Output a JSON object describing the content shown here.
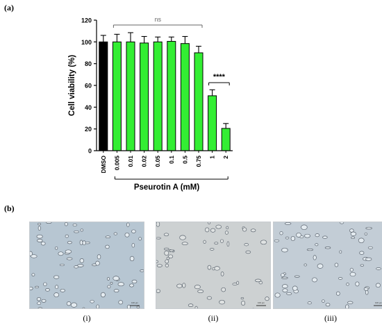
{
  "panel_a_label": "(a)",
  "panel_b_label": "(b)",
  "chart_data": {
    "type": "bar",
    "categories": [
      "DMSO",
      "0.005",
      "0.01",
      "0.02",
      "0.05",
      "0.1",
      "0.5",
      "0.75",
      "1",
      "2"
    ],
    "values": [
      100,
      100,
      100,
      99,
      100,
      100.5,
      98.5,
      90,
      50.5,
      20.5
    ],
    "errors": [
      6,
      7,
      8.5,
      6,
      4.5,
      4,
      6.5,
      6,
      5.5,
      4.5
    ],
    "bar_colors": [
      "#000000",
      "#33ee33",
      "#33ee33",
      "#33ee33",
      "#33ee33",
      "#33ee33",
      "#33ee33",
      "#33ee33",
      "#33ee33",
      "#33ee33"
    ],
    "ylabel": "Cell viability (%)",
    "xlabel": "Pseurotin A (mM)",
    "ylim": [
      0,
      120
    ],
    "yticks": [
      0,
      20,
      40,
      60,
      80,
      100,
      120
    ],
    "grid": false,
    "annotations": [
      {
        "text": "ns",
        "from_category": "0.005",
        "to_category": "0.75"
      },
      {
        "text": "****",
        "from_category": "1",
        "to_category": "2"
      }
    ]
  },
  "micrographs": {
    "captions": [
      "(i)",
      "(ii)",
      "(iii)"
    ],
    "scale_bar_text": "100 µm",
    "background_colors": [
      "#b7c6d2",
      "#cdd1d2",
      "#c3cdd6"
    ]
  }
}
